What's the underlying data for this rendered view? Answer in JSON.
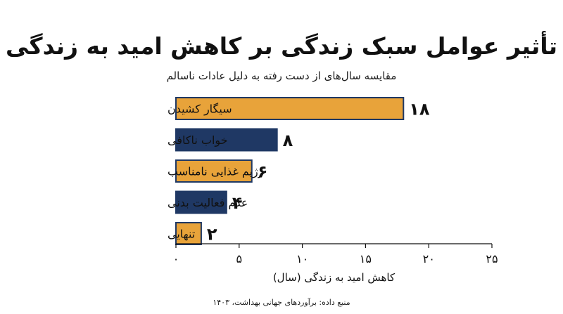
{
  "chart_data": {
    "type": "bar",
    "orientation": "horizontal",
    "title": "تأثیر عوامل سبک زندگی بر کاهش امید به زندگی",
    "subtitle": "مقایسه سال‌های از دست رفته به دلیل عادات ناسالم",
    "categories": [
      "سیگار کشیدن",
      "خواب ناکافی",
      "رژیم غذایی نامناسب",
      "عدم فعالیت بدنی",
      "تنهایی"
    ],
    "values": [
      18,
      8,
      6,
      4,
      2
    ],
    "value_labels": [
      "۱۸",
      "۸",
      "۶",
      "۴",
      "۲"
    ],
    "bar_colors": [
      "#E8A33A",
      "#1F3864",
      "#E8A33A",
      "#1F3864",
      "#E8A33A"
    ],
    "bar_border_color": "#1F3864",
    "xlabel": "کاهش امید به زندگی (سال)",
    "xlim": [
      0,
      25
    ],
    "xticks": [
      0,
      5,
      10,
      15,
      20,
      25
    ],
    "xtick_labels": [
      "۰",
      "۵",
      "۱۰",
      "۱۵",
      "۲۰",
      "۲۵"
    ],
    "grid": false,
    "source": "منبع داده: برآوردهای جهانی بهداشت، ۱۴۰۳"
  }
}
